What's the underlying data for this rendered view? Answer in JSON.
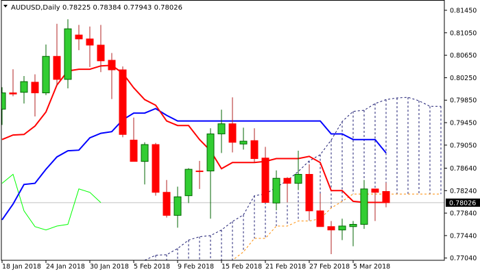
{
  "header": {
    "symbol": "AUDUSD,Daily",
    "ohlc": "0.78225 0.78384 0.77943 0.78026",
    "icon": "triangle-down-icon"
  },
  "colors": {
    "bull_fill": "#32CD32",
    "bull_border": "#006400",
    "bear_fill": "#FF0000",
    "bear_wick": "#B22222",
    "tenkan": "#FF0000",
    "kijun": "#0000FF",
    "chikou": "#00FF00",
    "span_navy": "#191970",
    "span_orange": "#FF8C00",
    "price_line": "#C0C0C0"
  },
  "chart_data": {
    "type": "candlestick",
    "title": "AUDUSD,Daily",
    "ylim": [
      0.77,
      0.81633
    ],
    "grid": false,
    "y_ticks": [
      "0.81450",
      "0.81050",
      "0.80650",
      "0.80250",
      "0.79850",
      "0.79450",
      "0.79050",
      "0.78640",
      "0.78240",
      "0.77840",
      "0.77440",
      "0.77040"
    ],
    "current_price": "0.78026",
    "x_tick_labels": [
      {
        "index": 0,
        "label": "18 Jan 2018"
      },
      {
        "index": 4,
        "label": "24 Jan 2018"
      },
      {
        "index": 8,
        "label": "30 Jan 2018"
      },
      {
        "index": 12,
        "label": "5 Feb 2018"
      },
      {
        "index": 16,
        "label": "9 Feb 2018"
      },
      {
        "index": 20,
        "label": "15 Feb 2018"
      },
      {
        "index": 24,
        "label": "21 Feb 2018"
      },
      {
        "index": 28,
        "label": "27 Feb 2018"
      },
      {
        "index": 32,
        "label": "5 Mar 2018"
      }
    ],
    "candles": [
      {
        "date": "18 Jan 2018",
        "o": 0.7969,
        "h": 0.8008,
        "l": 0.7941,
        "c": 0.7998
      },
      {
        "date": "19 Jan 2018",
        "o": 0.7998,
        "h": 0.804,
        "l": 0.7992,
        "c": 0.7996
      },
      {
        "date": "22 Jan 2018",
        "o": 0.7999,
        "h": 0.8028,
        "l": 0.7979,
        "c": 0.8018
      },
      {
        "date": "23 Jan 2018",
        "o": 0.8017,
        "h": 0.8031,
        "l": 0.7956,
        "c": 0.7998
      },
      {
        "date": "24 Jan 2018",
        "o": 0.7998,
        "h": 0.8084,
        "l": 0.7994,
        "c": 0.8063
      },
      {
        "date": "25 Jan 2018",
        "o": 0.8063,
        "h": 0.8121,
        "l": 0.8011,
        "c": 0.8022
      },
      {
        "date": "26 Jan 2018",
        "o": 0.8022,
        "h": 0.8129,
        "l": 0.8006,
        "c": 0.8112
      },
      {
        "date": "29 Jan 2018",
        "o": 0.8101,
        "h": 0.8119,
        "l": 0.8074,
        "c": 0.8094
      },
      {
        "date": "30 Jan 2018",
        "o": 0.8094,
        "h": 0.8116,
        "l": 0.8044,
        "c": 0.8083
      },
      {
        "date": "31 Jan 2018",
        "o": 0.8083,
        "h": 0.8119,
        "l": 0.8035,
        "c": 0.8055
      },
      {
        "date": "1 Feb 2018",
        "o": 0.8056,
        "h": 0.8069,
        "l": 0.7987,
        "c": 0.8039
      },
      {
        "date": "2 Feb 2018",
        "o": 0.8039,
        "h": 0.8045,
        "l": 0.7919,
        "c": 0.7924
      },
      {
        "date": "5 Feb 2018",
        "o": 0.7914,
        "h": 0.7954,
        "l": 0.7876,
        "c": 0.7876
      },
      {
        "date": "6 Feb 2018",
        "o": 0.7876,
        "h": 0.791,
        "l": 0.7835,
        "c": 0.7906
      },
      {
        "date": "7 Feb 2018",
        "o": 0.7906,
        "h": 0.7909,
        "l": 0.7815,
        "c": 0.7821
      },
      {
        "date": "8 Feb 2018",
        "o": 0.7821,
        "h": 0.7843,
        "l": 0.7776,
        "c": 0.778
      },
      {
        "date": "9 Feb 2018",
        "o": 0.778,
        "h": 0.7831,
        "l": 0.7758,
        "c": 0.7813
      },
      {
        "date": "12 Feb 2018",
        "o": 0.7815,
        "h": 0.7864,
        "l": 0.7802,
        "c": 0.7862
      },
      {
        "date": "13 Feb 2018",
        "o": 0.7859,
        "h": 0.7877,
        "l": 0.7827,
        "c": 0.7859
      },
      {
        "date": "14 Feb 2018",
        "o": 0.7859,
        "h": 0.7935,
        "l": 0.7774,
        "c": 0.7925
      },
      {
        "date": "15 Feb 2018",
        "o": 0.7925,
        "h": 0.7968,
        "l": 0.7891,
        "c": 0.7943
      },
      {
        "date": "16 Feb 2018",
        "o": 0.7943,
        "h": 0.799,
        "l": 0.7892,
        "c": 0.791
      },
      {
        "date": "19 Feb 2018",
        "o": 0.7907,
        "h": 0.7936,
        "l": 0.7897,
        "c": 0.7912
      },
      {
        "date": "20 Feb 2018",
        "o": 0.7913,
        "h": 0.7935,
        "l": 0.7874,
        "c": 0.7881
      },
      {
        "date": "21 Feb 2018",
        "o": 0.7882,
        "h": 0.7902,
        "l": 0.7803,
        "c": 0.7803
      },
      {
        "date": "22 Feb 2018",
        "o": 0.7802,
        "h": 0.786,
        "l": 0.7789,
        "c": 0.7846
      },
      {
        "date": "23 Feb 2018",
        "o": 0.7846,
        "h": 0.7848,
        "l": 0.7803,
        "c": 0.7837
      },
      {
        "date": "26 Feb 2018",
        "o": 0.7837,
        "h": 0.7895,
        "l": 0.7825,
        "c": 0.7853
      },
      {
        "date": "27 Feb 2018",
        "o": 0.7853,
        "h": 0.7871,
        "l": 0.7772,
        "c": 0.7788
      },
      {
        "date": "28 Feb 2018",
        "o": 0.7788,
        "h": 0.7819,
        "l": 0.776,
        "c": 0.776
      },
      {
        "date": "1 Mar 2018",
        "o": 0.776,
        "h": 0.777,
        "l": 0.7711,
        "c": 0.7754
      },
      {
        "date": "2 Mar 2018",
        "o": 0.7754,
        "h": 0.7774,
        "l": 0.7736,
        "c": 0.7761
      },
      {
        "date": "5 Mar 2018",
        "o": 0.776,
        "h": 0.777,
        "l": 0.7725,
        "c": 0.7764
      },
      {
        "date": "6 Mar 2018",
        "o": 0.7764,
        "h": 0.7843,
        "l": 0.7756,
        "c": 0.7827
      },
      {
        "date": "7 Mar 2018",
        "o": 0.7827,
        "h": 0.7827,
        "l": 0.777,
        "c": 0.7821
      },
      {
        "date": "8 Mar 2018",
        "o": 0.78225,
        "h": 0.78384,
        "l": 0.77943,
        "c": 0.78026
      }
    ],
    "tenkan": [
      0.7915,
      0.7923,
      0.7924,
      0.7939,
      0.7964,
      0.8012,
      0.8037,
      0.804,
      0.804,
      0.8046,
      0.8047,
      0.8033,
      0.8007,
      0.7986,
      0.7976,
      0.7948,
      0.794,
      0.794,
      0.7915,
      0.7895,
      0.7863,
      0.7874,
      0.7874,
      0.7874,
      0.7876,
      0.7881,
      0.7881,
      0.7881,
      0.7885,
      0.7874,
      0.7824,
      0.7824,
      0.7805,
      0.7803,
      0.7803,
      0.7803
    ],
    "kijun": [
      0.7772,
      0.78,
      0.7835,
      0.7837,
      0.7862,
      0.7884,
      0.7895,
      0.7896,
      0.7918,
      0.7926,
      0.7929,
      0.795,
      0.7962,
      0.7962,
      0.797,
      0.7958,
      0.7948,
      0.7948,
      0.7948,
      0.7948,
      0.7948,
      0.7948,
      0.7948,
      0.7948,
      0.7948,
      0.7948,
      0.7948,
      0.7948,
      0.7948,
      0.7948,
      0.7925,
      0.7925,
      0.7915,
      0.7915,
      0.7915,
      0.7891
    ],
    "chikou_shift": 26,
    "span_navy": [
      null,
      null,
      null,
      null,
      null,
      null,
      null,
      null,
      null,
      null,
      null,
      null,
      null,
      0.77,
      0.7709,
      0.771,
      0.7721,
      0.7736,
      0.7742,
      0.7744,
      0.7754,
      0.7769,
      0.7781,
      0.7815,
      0.7818,
      0.783,
      0.7842,
      0.7858,
      0.7877,
      0.7888,
      0.7914,
      0.7947,
      0.7965,
      0.7967,
      0.7979,
      0.7986,
      0.7989,
      0.799,
      0.7984,
      0.7974,
      0.7974
    ],
    "span_orange": [
      null,
      null,
      null,
      null,
      null,
      null,
      null,
      null,
      null,
      null,
      null,
      null,
      null,
      0.765,
      0.7655,
      0.766,
      0.7665,
      0.767,
      0.7675,
      0.768,
      0.7693,
      0.7699,
      0.7715,
      0.7739,
      0.7739,
      0.7761,
      0.7761,
      0.777,
      0.777,
      0.7774,
      0.7793,
      0.7805,
      0.7818,
      0.7818,
      0.7818,
      0.7818,
      0.7818,
      0.7818,
      0.7818,
      0.7818,
      0.7818
    ]
  }
}
